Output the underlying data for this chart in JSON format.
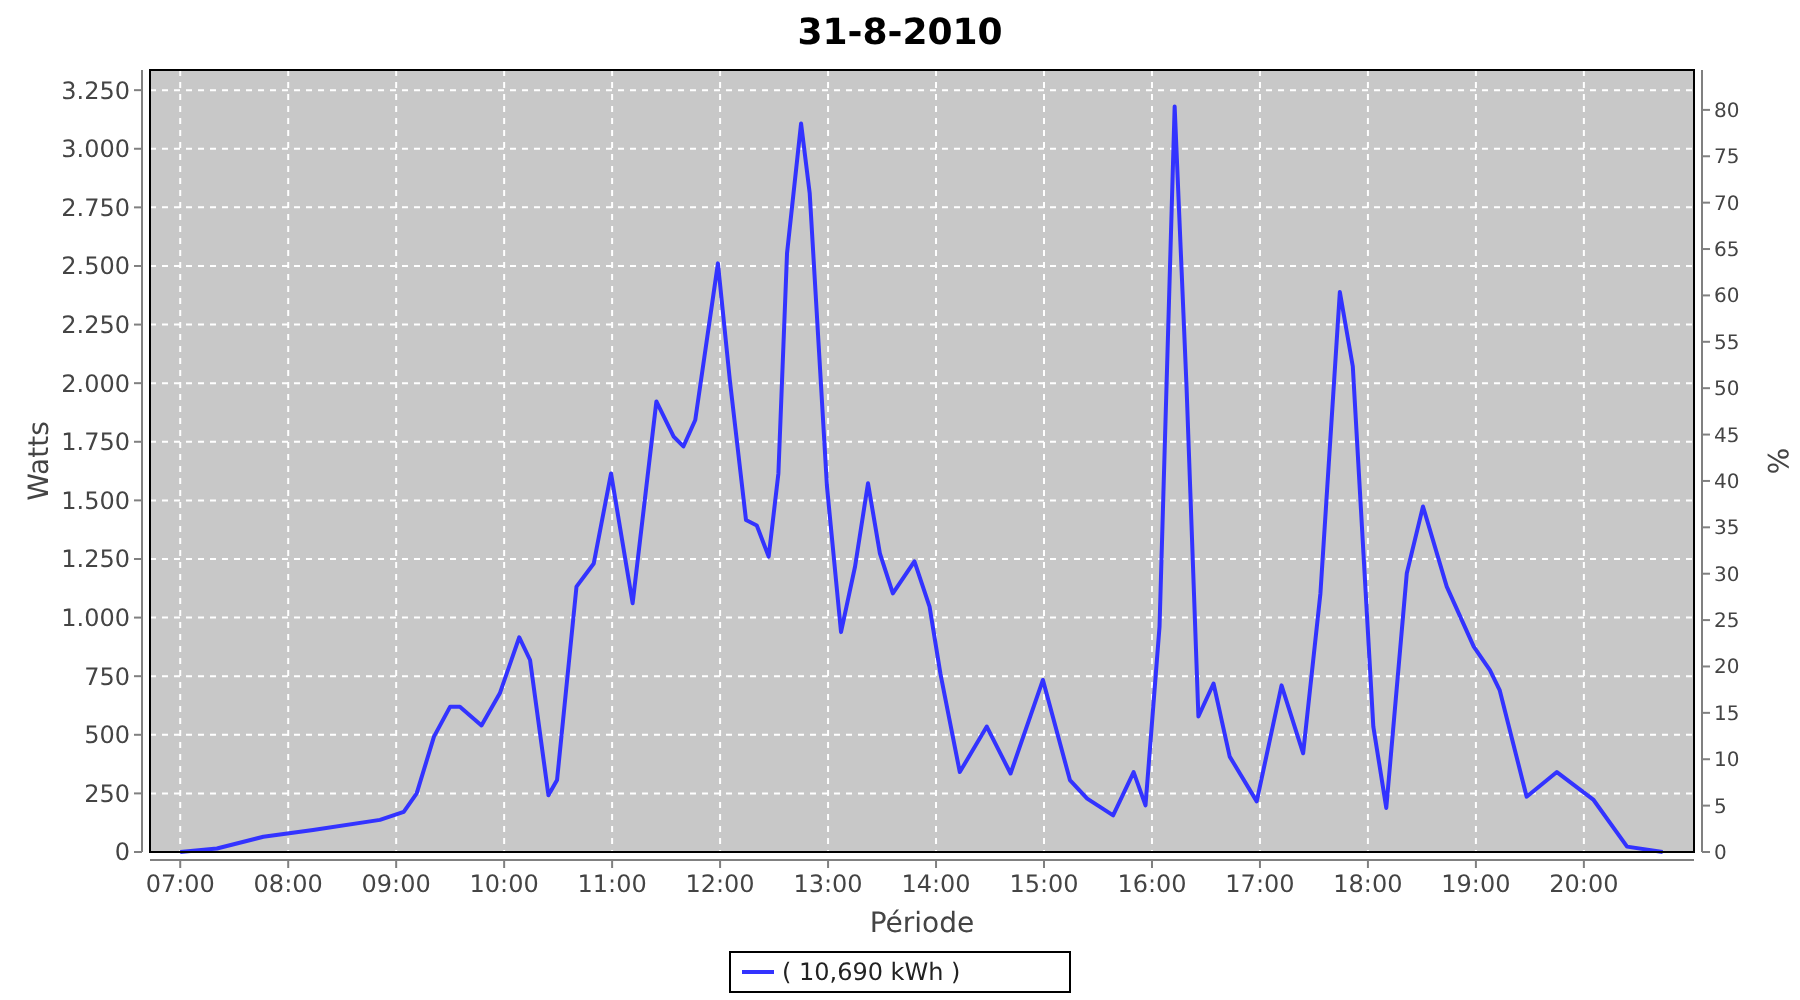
{
  "chart_data": {
    "type": "line",
    "title": "31-8-2010",
    "xlabel": "Période",
    "ylabel": "Watts",
    "y2label": "%",
    "xlim": [
      6.72,
      21.02
    ],
    "ylim": [
      0,
      3336
    ],
    "y2lim": [
      0,
      84.3
    ],
    "xticks": [
      {
        "value": 7,
        "label": "07:00"
      },
      {
        "value": 8,
        "label": "08:00"
      },
      {
        "value": 9,
        "label": "09:00"
      },
      {
        "value": 10,
        "label": "10:00"
      },
      {
        "value": 11,
        "label": "11:00"
      },
      {
        "value": 12,
        "label": "12:00"
      },
      {
        "value": 13,
        "label": "13:00"
      },
      {
        "value": 14,
        "label": "14:00"
      },
      {
        "value": 15,
        "label": "15:00"
      },
      {
        "value": 16,
        "label": "16:00"
      },
      {
        "value": 17,
        "label": "17:00"
      },
      {
        "value": 18,
        "label": "18:00"
      },
      {
        "value": 19,
        "label": "19:00"
      },
      {
        "value": 20,
        "label": "20:00"
      }
    ],
    "yticks": [
      0,
      {
        "value": 250,
        "label": "250"
      },
      {
        "value": 500,
        "label": "500"
      },
      {
        "value": 750,
        "label": "750"
      },
      {
        "value": 1000,
        "label": "1.000"
      },
      {
        "value": 1250,
        "label": "1.250"
      },
      {
        "value": 1500,
        "label": "1.500"
      },
      {
        "value": 1750,
        "label": "1.750"
      },
      {
        "value": 2000,
        "label": "2.000"
      },
      {
        "value": 2250,
        "label": "2.250"
      },
      {
        "value": 2500,
        "label": "2.500"
      },
      {
        "value": 2750,
        "label": "2.750"
      },
      {
        "value": 3000,
        "label": "3.000"
      },
      {
        "value": 3250,
        "label": "3.250"
      }
    ],
    "y2ticks": [
      0,
      5,
      10,
      15,
      20,
      25,
      30,
      35,
      40,
      45,
      50,
      55,
      60,
      65,
      70,
      75,
      80
    ],
    "grid": true,
    "legend": "bottom",
    "line_style": "solid",
    "series": [
      {
        "name": "( 10,690 kWh )",
        "color": "#3333ff",
        "x": [
          7.0,
          7.34,
          7.77,
          8.23,
          8.85,
          9.07,
          9.19,
          9.35,
          9.5,
          9.59,
          9.79,
          9.96,
          10.14,
          10.24,
          10.41,
          10.49,
          10.67,
          10.83,
          10.99,
          11.19,
          11.41,
          11.57,
          11.66,
          11.77,
          11.98,
          12.09,
          12.24,
          12.34,
          12.45,
          12.54,
          12.62,
          12.75,
          12.83,
          12.99,
          13.12,
          13.25,
          13.37,
          13.48,
          13.6,
          13.8,
          13.94,
          14.04,
          14.22,
          14.47,
          14.69,
          14.99,
          15.24,
          15.4,
          15.64,
          15.83,
          15.94,
          16.07,
          16.21,
          16.32,
          16.43,
          16.57,
          16.72,
          16.97,
          17.2,
          17.4,
          17.56,
          17.74,
          17.86,
          18.05,
          18.17,
          18.36,
          18.51,
          18.73,
          18.98,
          19.13,
          19.22,
          19.47,
          19.75,
          20.09,
          20.4,
          20.73
        ],
        "values": [
          0,
          15,
          65,
          94,
          137,
          171,
          250,
          492,
          620,
          620,
          540,
          677,
          916,
          819,
          242,
          307,
          1132,
          1231,
          1615,
          1061,
          1922,
          1772,
          1730,
          1843,
          2511,
          2014,
          1416,
          1393,
          1260,
          1615,
          2554,
          3108,
          2810,
          1559,
          938,
          1218,
          1573,
          1274,
          1103,
          1240,
          1047,
          762,
          341,
          535,
          335,
          734,
          307,
          228,
          156,
          341,
          199,
          962,
          3180,
          1985,
          578,
          719,
          407,
          216,
          711,
          421,
          1103,
          2389,
          2071,
          535,
          188,
          1189,
          1474,
          1132,
          876,
          776,
          691,
          236,
          341,
          222,
          23,
          0
        ]
      }
    ]
  }
}
